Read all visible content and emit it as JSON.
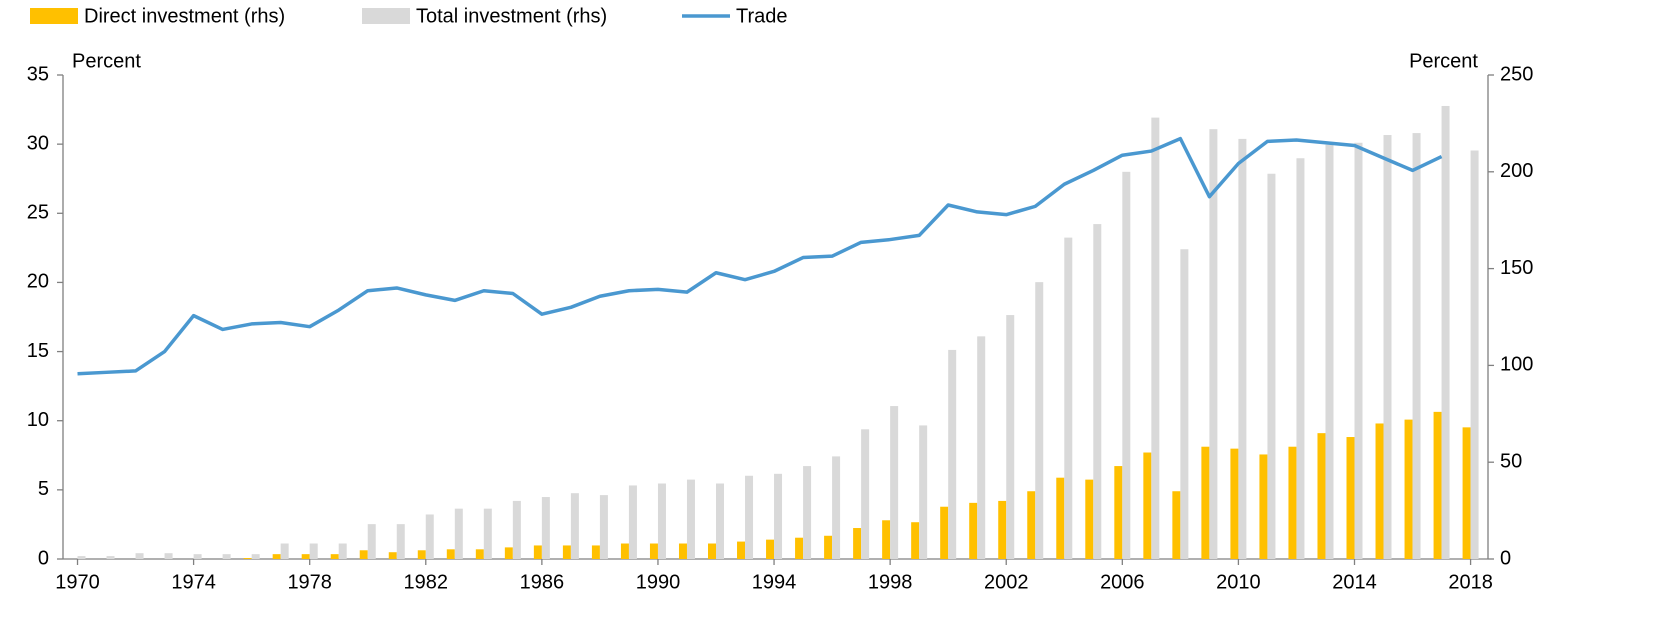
{
  "chart_data": {
    "type": "bar",
    "x": [
      1970,
      1971,
      1972,
      1973,
      1974,
      1975,
      1976,
      1977,
      1978,
      1979,
      1980,
      1981,
      1982,
      1983,
      1984,
      1985,
      1986,
      1987,
      1988,
      1989,
      1990,
      1991,
      1992,
      1993,
      1994,
      1995,
      1996,
      1997,
      1998,
      1999,
      2000,
      2001,
      2002,
      2003,
      2004,
      2005,
      2006,
      2007,
      2008,
      2009,
      2010,
      2011,
      2012,
      2013,
      2014,
      2015,
      2016,
      2017,
      2018
    ],
    "xlim": [
      1969.5,
      2018.6
    ],
    "xticks": [
      1970,
      1974,
      1978,
      1982,
      1986,
      1990,
      1994,
      1998,
      2002,
      2006,
      2010,
      2014,
      2018
    ],
    "ylim": [
      0,
      35
    ],
    "yticks": [
      0,
      5,
      10,
      15,
      20,
      25,
      30,
      35
    ],
    "y2lim": [
      0,
      250
    ],
    "y2ticks": [
      0,
      50,
      100,
      150,
      200,
      250
    ],
    "ylabel": "Percent",
    "y2label": "Percent",
    "legend": "top",
    "series": [
      {
        "name": "Direct investment (rhs)",
        "type": "bar",
        "axis": "y2",
        "color": "#ffc000",
        "values": [
          0,
          0,
          0,
          0,
          0,
          0,
          0.5,
          2.5,
          2.5,
          2.5,
          4.5,
          3.5,
          4.5,
          5,
          5,
          6,
          7,
          7,
          7,
          8,
          8,
          8,
          8,
          9,
          10,
          11,
          12,
          16,
          20,
          19,
          27,
          29,
          30,
          35,
          42,
          41,
          48,
          55,
          35,
          58,
          57,
          54,
          58,
          65,
          63,
          70,
          72,
          76,
          68
        ]
      },
      {
        "name": "Total investment (rhs)",
        "type": "bar",
        "axis": "y2",
        "color": "#d9d9d9",
        "values": [
          1.5,
          1.5,
          3,
          3,
          2.5,
          2.5,
          2.5,
          8,
          8,
          8,
          18,
          18,
          23,
          26,
          26,
          30,
          32,
          34,
          33,
          38,
          39,
          41,
          39,
          43,
          44,
          48,
          53,
          67,
          79,
          69,
          108,
          115,
          126,
          143,
          166,
          173,
          200,
          228,
          160,
          222,
          217,
          199,
          207,
          214,
          215,
          219,
          220,
          234,
          211
        ]
      },
      {
        "name": "Trade",
        "type": "line",
        "axis": "y",
        "color": "#4a98d0",
        "values": [
          13.4,
          13.5,
          13.6,
          15.0,
          17.6,
          16.6,
          17.0,
          17.1,
          16.8,
          18.0,
          19.4,
          19.6,
          19.1,
          18.7,
          19.4,
          19.2,
          17.7,
          18.2,
          19.0,
          19.4,
          19.5,
          19.3,
          20.7,
          20.2,
          20.8,
          21.8,
          21.9,
          22.9,
          23.1,
          23.4,
          25.6,
          25.1,
          24.9,
          25.5,
          27.1,
          28.1,
          29.2,
          29.5,
          30.4,
          26.2,
          28.6,
          30.2,
          30.3,
          30.1,
          29.9,
          29.0,
          28.1,
          29.1,
          null
        ]
      }
    ]
  }
}
